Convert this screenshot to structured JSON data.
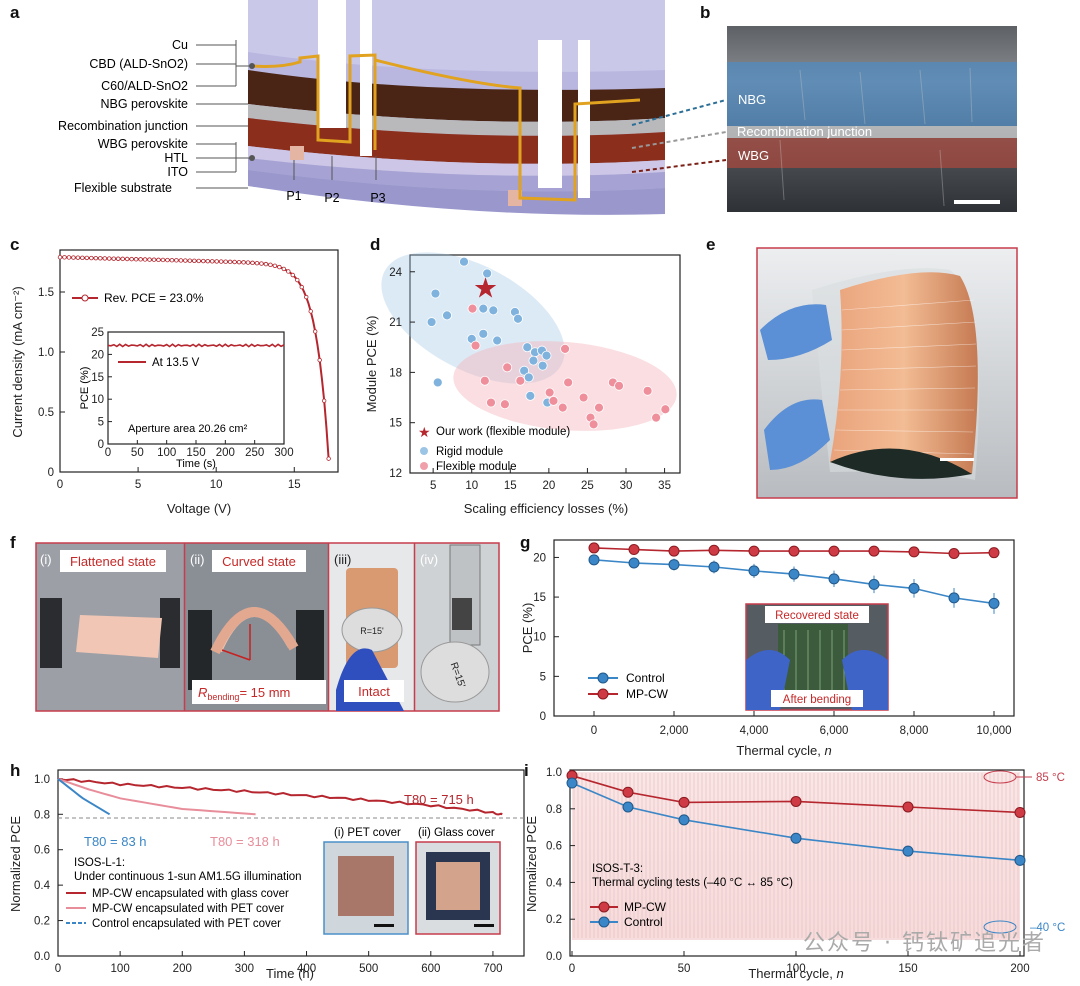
{
  "panels": {
    "a": "a",
    "b": "b",
    "c": "c",
    "d": "d",
    "e": "e",
    "f": "f",
    "g": "g",
    "h": "h",
    "i": "i"
  },
  "schematic": {
    "layers": [
      "Cu",
      "CBD (ALD-SnO2)",
      "C60/ALD-SnO2",
      "NBG perovskite",
      "Recombination junction",
      "WBG perovskite",
      "HTL",
      "ITO",
      "Flexible substrate"
    ],
    "scribes": [
      "P1",
      "P2",
      "P3"
    ]
  },
  "sem": {
    "labels": [
      "NBG",
      "Recombination junction",
      "WBG"
    ]
  },
  "colors": {
    "red": "#b5262e",
    "blue": "#3b86c6",
    "pink": "#e88d9a",
    "lightblue": "#9cc4e4",
    "gold": "#e0a21f"
  },
  "jv": {
    "legend": "Rev. PCE = 23.0%",
    "inset_legend": "At 13.5 V",
    "inset_note": "Aperture area 20.26 cm²",
    "inset_ylabel": "PCE (%)",
    "inset_xlabel": "Time (s)",
    "inset_yticks": [
      "0",
      "5",
      "10",
      "15",
      "20",
      "25"
    ],
    "inset_xticks": [
      "0",
      "50",
      "100",
      "150",
      "200",
      "250",
      "300"
    ],
    "inset_value": 22,
    "xlabel": "Voltage (V)",
    "ylabel": "Current density (mA cm⁻²)",
    "xticks": [
      "0",
      "5",
      "10",
      "15"
    ],
    "yticks": [
      "0",
      "0.5",
      "1.0",
      "1.5"
    ],
    "jsc": 1.79,
    "voc": 17.2
  },
  "chart_data": [
    {
      "type": "scatter",
      "panel": "d",
      "xlabel": "Scaling efficiency losses (%)",
      "ylabel": "Module PCE (%)",
      "xlim": [
        2,
        37
      ],
      "ylim": [
        12,
        25
      ],
      "xticks": [
        "5",
        "10",
        "15",
        "20",
        "25",
        "30",
        "35"
      ],
      "yticks": [
        "12",
        "15",
        "18",
        "21",
        "24"
      ],
      "series": [
        {
          "name": "Our work (flexible module)",
          "points": [
            [
              11.8,
              23.0
            ]
          ]
        },
        {
          "name": "Rigid module",
          "points": [
            [
              9,
              24.6
            ],
            [
              12,
              23.9
            ],
            [
              5.3,
              22.7
            ],
            [
              6.8,
              21.4
            ],
            [
              11.5,
              21.8
            ],
            [
              12.8,
              21.7
            ],
            [
              15.6,
              21.6
            ],
            [
              16,
              21.2
            ],
            [
              4.8,
              21.0
            ],
            [
              10,
              20.0
            ],
            [
              11.5,
              20.3
            ],
            [
              13.3,
              19.9
            ],
            [
              17.2,
              19.5
            ],
            [
              18.2,
              19.2
            ],
            [
              19.1,
              19.3
            ],
            [
              18,
              18.7
            ],
            [
              19.7,
              19.0
            ],
            [
              19.2,
              18.4
            ],
            [
              16.8,
              18.1
            ],
            [
              17.4,
              17.7
            ],
            [
              5.6,
              17.4
            ],
            [
              17.6,
              16.6
            ],
            [
              19.8,
              16.2
            ]
          ]
        },
        {
          "name": "Flexible module",
          "points": [
            [
              10.1,
              21.8
            ],
            [
              10.5,
              19.6
            ],
            [
              22.1,
              19.4
            ],
            [
              14.6,
              18.3
            ],
            [
              11.7,
              17.5
            ],
            [
              16.3,
              17.5
            ],
            [
              22.5,
              17.4
            ],
            [
              20.1,
              16.8
            ],
            [
              28.3,
              17.4
            ],
            [
              29.1,
              17.2
            ],
            [
              24.5,
              16.5
            ],
            [
              32.8,
              16.9
            ],
            [
              20.6,
              16.3
            ],
            [
              12.5,
              16.2
            ],
            [
              14.3,
              16.1
            ],
            [
              26.5,
              15.9
            ],
            [
              35.1,
              15.8
            ],
            [
              25.4,
              15.3
            ],
            [
              21.8,
              15.9
            ],
            [
              25.8,
              14.9
            ],
            [
              33.9,
              15.3
            ]
          ]
        }
      ]
    },
    {
      "type": "line",
      "panel": "g",
      "xlabel": "Thermal cycle, n",
      "ylabel": "PCE (%)",
      "xlim": [
        -1000,
        10500
      ],
      "ylim": [
        0,
        22
      ],
      "xticks": [
        "0",
        "2,000",
        "4,000",
        "6,000",
        "8,000",
        "10,000"
      ],
      "yticks": [
        "0",
        "5",
        "10",
        "15",
        "20"
      ],
      "x": [
        0,
        1000,
        2000,
        3000,
        4000,
        5000,
        6000,
        7000,
        8000,
        9000,
        10000
      ],
      "series": [
        {
          "name": "Control",
          "values": [
            19.7,
            19.3,
            19.1,
            18.8,
            18.3,
            17.9,
            17.3,
            16.6,
            16.1,
            14.9,
            14.2
          ]
        },
        {
          "name": "MP-CW",
          "values": [
            21.2,
            21.0,
            20.8,
            20.9,
            20.8,
            20.8,
            20.8,
            20.8,
            20.7,
            20.5,
            20.6
          ]
        }
      ],
      "inset_labels": [
        "Recovered state",
        "After bending"
      ]
    },
    {
      "type": "line",
      "panel": "h",
      "xlabel": "Time (h)",
      "ylabel": "Normalized PCE",
      "xlim": [
        0,
        750
      ],
      "ylim": [
        0.0,
        1.05
      ],
      "xticks": [
        "0",
        "100",
        "200",
        "300",
        "400",
        "500",
        "600",
        "700"
      ],
      "yticks": [
        "0.0",
        "0.2",
        "0.4",
        "0.6",
        "0.8",
        "1.0"
      ],
      "series": [
        {
          "name": "MP-CW encapsulated with glass cover",
          "points": [
            [
              0,
              1.0
            ],
            [
              100,
              0.97
            ],
            [
              200,
              0.95
            ],
            [
              300,
              0.93
            ],
            [
              400,
              0.905
            ],
            [
              500,
              0.88
            ],
            [
              600,
              0.85
            ],
            [
              700,
              0.81
            ],
            [
              715,
              0.8
            ]
          ]
        },
        {
          "name": "MP-CW encapsulated with PET cover",
          "points": [
            [
              0,
              1.0
            ],
            [
              50,
              0.94
            ],
            [
              100,
              0.89
            ],
            [
              200,
              0.83
            ],
            [
              318,
              0.8
            ]
          ]
        },
        {
          "name": "Control encapsulated with PET cover",
          "points": [
            [
              0,
              1.0
            ],
            [
              40,
              0.89
            ],
            [
              83,
              0.8
            ]
          ]
        }
      ],
      "annotations": [
        "T80 = 83 h",
        "T80 = 318 h",
        "T80 = 715 h"
      ],
      "test_label": "ISOS-L-1:",
      "test_desc": "Under continuous 1-sun AM1.5G illumination",
      "inset_labels": [
        "(i) PET cover",
        "(ii) Glass cover"
      ]
    },
    {
      "type": "line",
      "panel": "i",
      "xlabel": "Thermal cycle, n",
      "ylabel": "Normalized PCE",
      "xlim": [
        0,
        200
      ],
      "ylim": [
        0.0,
        1.0
      ],
      "xticks": [
        "0",
        "50",
        "100",
        "150",
        "200"
      ],
      "yticks": [
        "0.0",
        "0.2",
        "0.4",
        "0.6",
        "0.8",
        "1.0"
      ],
      "x": [
        0,
        25,
        50,
        100,
        150,
        200
      ],
      "series": [
        {
          "name": "MP-CW",
          "values": [
            0.98,
            0.89,
            0.835,
            0.84,
            0.81,
            0.78
          ]
        },
        {
          "name": "Control",
          "values": [
            0.94,
            0.81,
            0.74,
            0.64,
            0.57,
            0.52
          ]
        }
      ],
      "test_label": "ISOS-T-3:",
      "test_desc": "Thermal cycling tests (–40 °C ↔ 85 °C)",
      "temp_high": "85 °C",
      "temp_low": "–40 °C"
    }
  ],
  "flex": {
    "states": [
      "(i)",
      "(ii)",
      "(iii)",
      "(iv)"
    ],
    "labels": [
      "Flattened state",
      "Curved state",
      "Intact"
    ],
    "radius_label": "= 15 mm",
    "radius_sym": "R",
    "radius_sub": "bending",
    "cylinder_text": "R=15'"
  },
  "watermark": "公众号 · 钙钛矿追光者"
}
